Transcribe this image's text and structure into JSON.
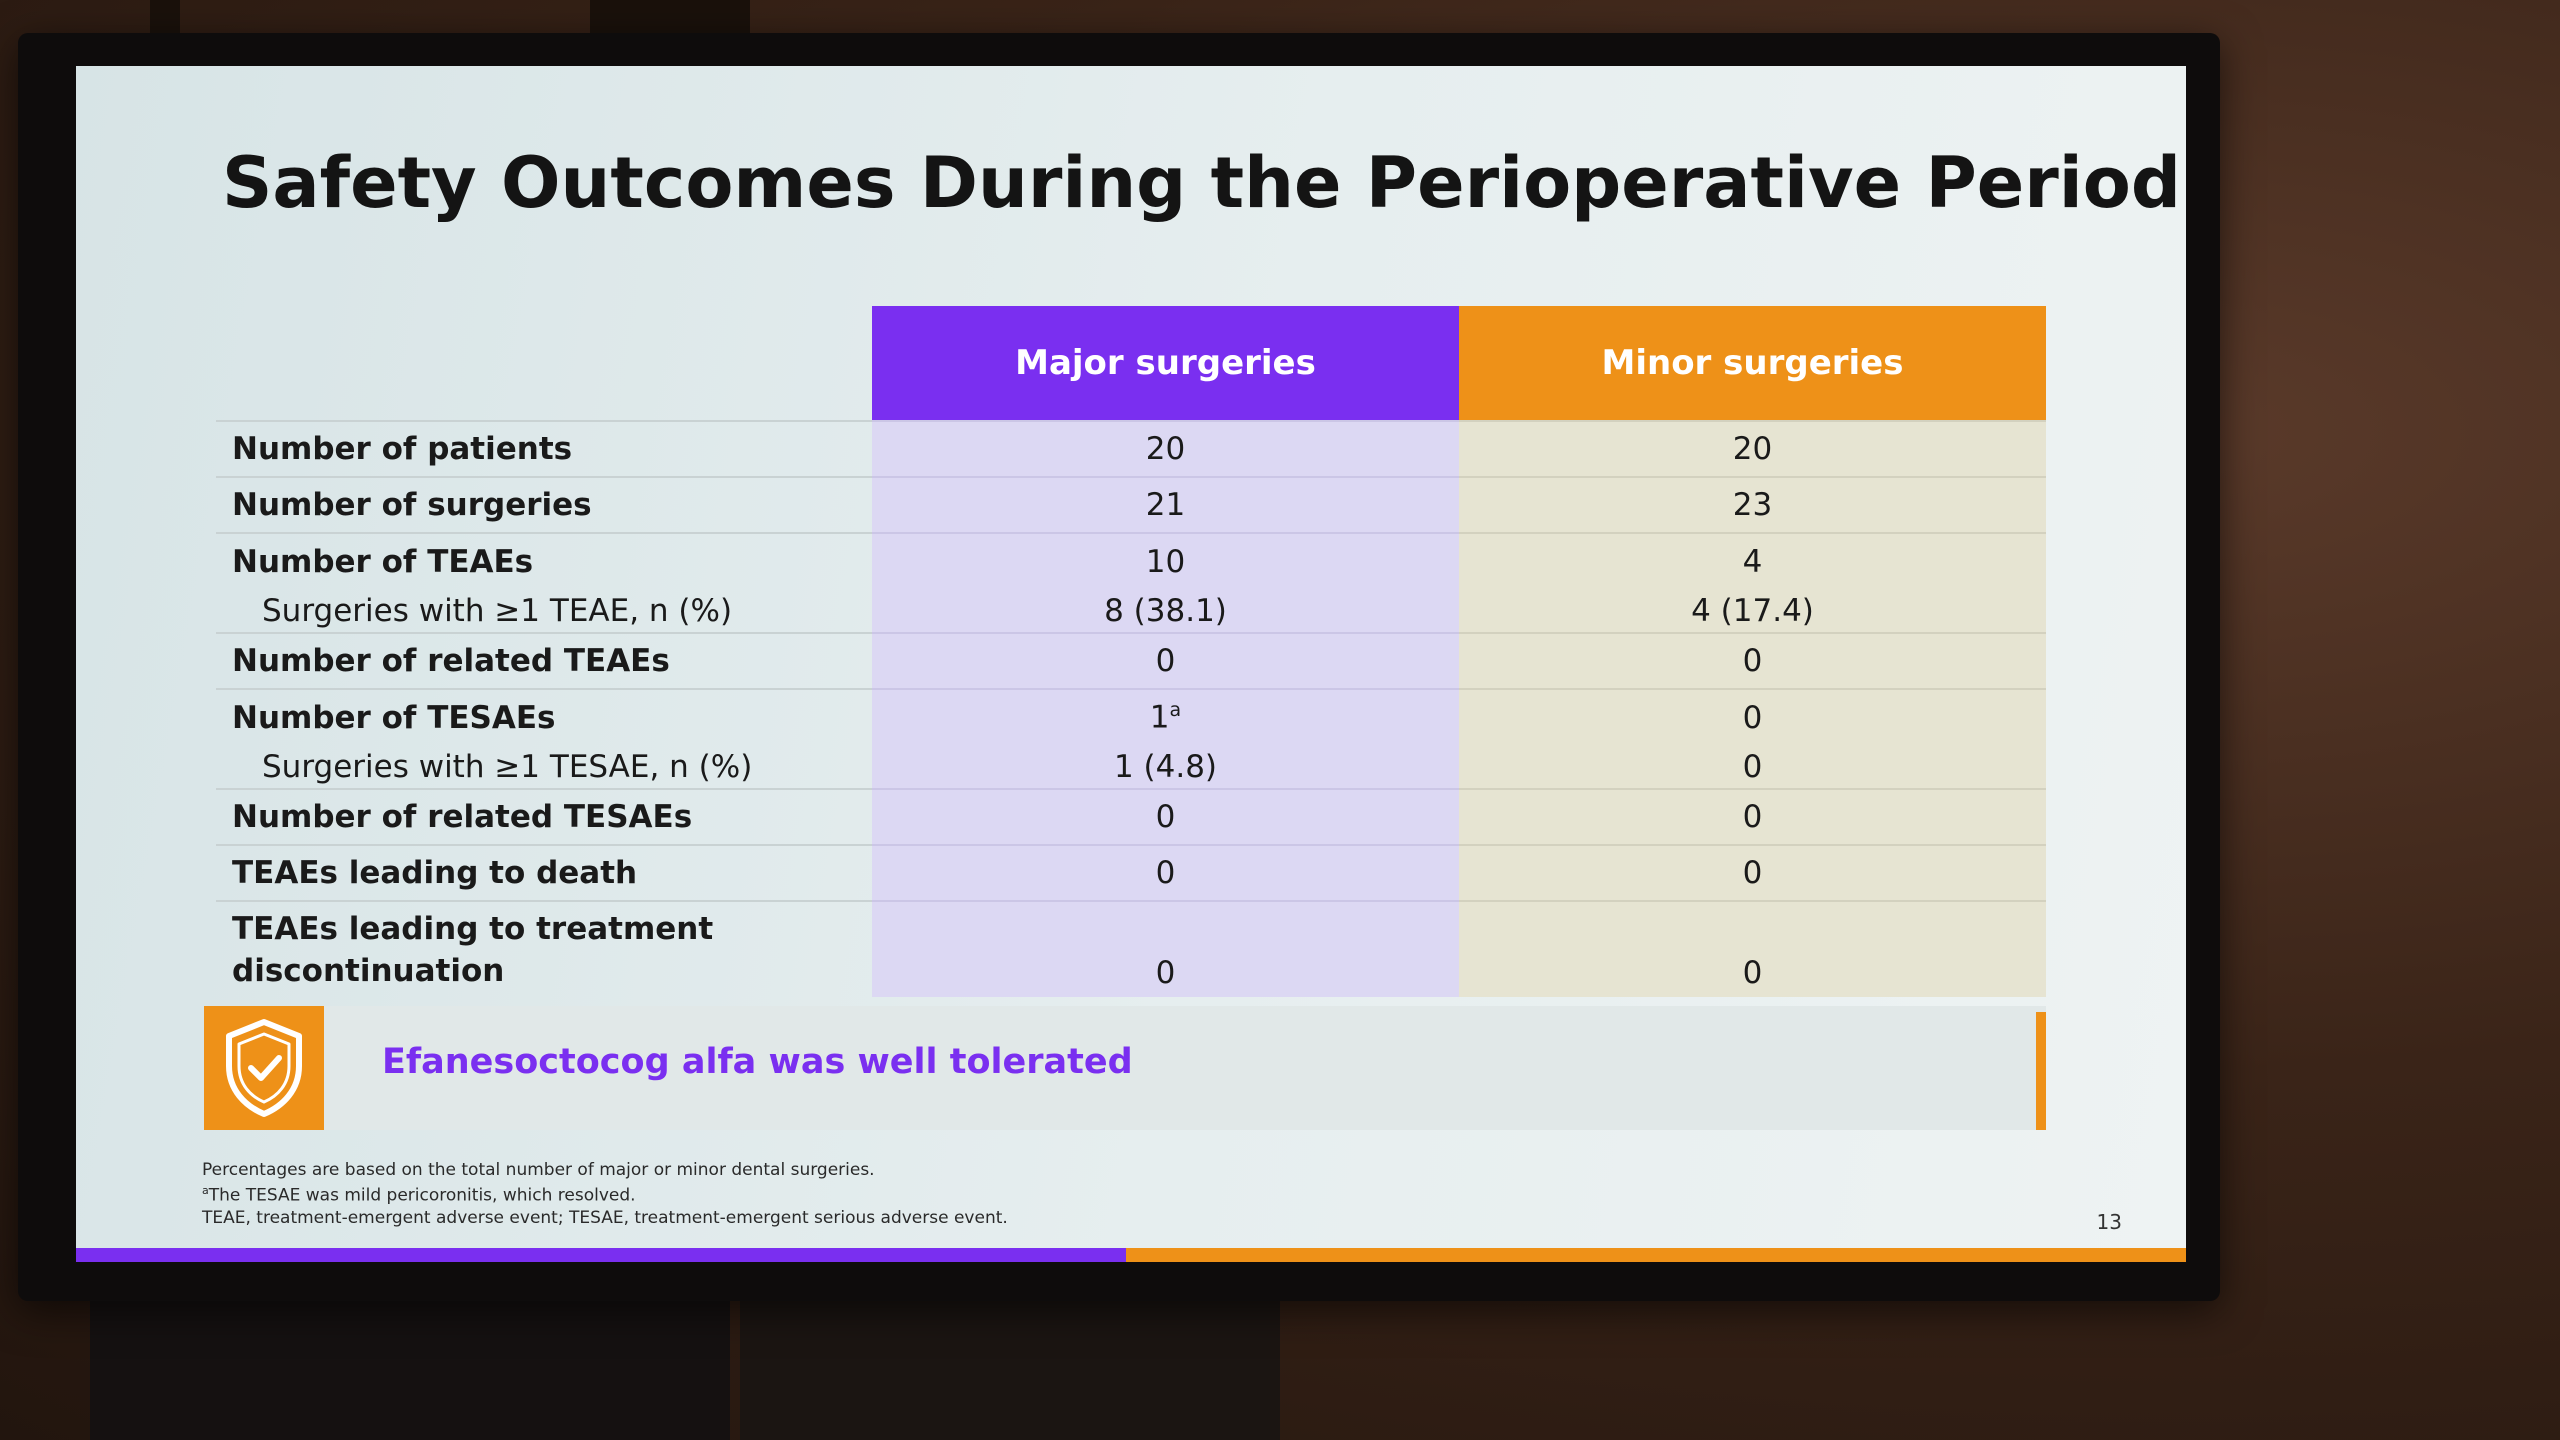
{
  "slide": {
    "title": "Safety Outcomes During the Perioperative Period",
    "page_number": "13"
  },
  "table": {
    "headers": {
      "major": "Major surgeries",
      "minor": "Minor surgeries"
    },
    "rows": [
      {
        "label": "Number of patients",
        "major": "20",
        "minor": "20"
      },
      {
        "label": "Number of surgeries",
        "major": "21",
        "minor": "23"
      },
      {
        "label": "Number of TEAEs",
        "major": "10",
        "minor": "4"
      },
      {
        "label": "Surgeries with ≥1 TEAE, n (%)",
        "major": "8 (38.1)",
        "minor": "4 (17.4)"
      },
      {
        "label": "Number of related TEAEs",
        "major": "0",
        "minor": "0"
      },
      {
        "label": "Number of TESAEs",
        "major": "1",
        "major_sup": "a",
        "minor": "0"
      },
      {
        "label": "Surgeries with ≥1 TESAE, n (%)",
        "major": "1 (4.8)",
        "minor": "0"
      },
      {
        "label": "Number of related TESAEs",
        "major": "0",
        "minor": "0"
      },
      {
        "label": "TEAEs leading to death",
        "major": "0",
        "minor": "0"
      },
      {
        "label_line1": "TEAEs leading to treatment",
        "label_line2": "discontinuation",
        "major": "0",
        "minor": "0"
      }
    ]
  },
  "banner": {
    "text": "Efanesoctocog alfa was well tolerated",
    "icon": "shield-check-icon"
  },
  "footnotes": {
    "line1": "Percentages are based on the total number of major or minor dental surgeries.",
    "line2_sup": "a",
    "line2": "The TESAE was mild pericoronitis, which resolved.",
    "line3": "TEAE, treatment-emergent adverse event; TESAE, treatment-emergent serious adverse event."
  },
  "colors": {
    "purple": "#7a2ff0",
    "orange": "#ee9118"
  }
}
